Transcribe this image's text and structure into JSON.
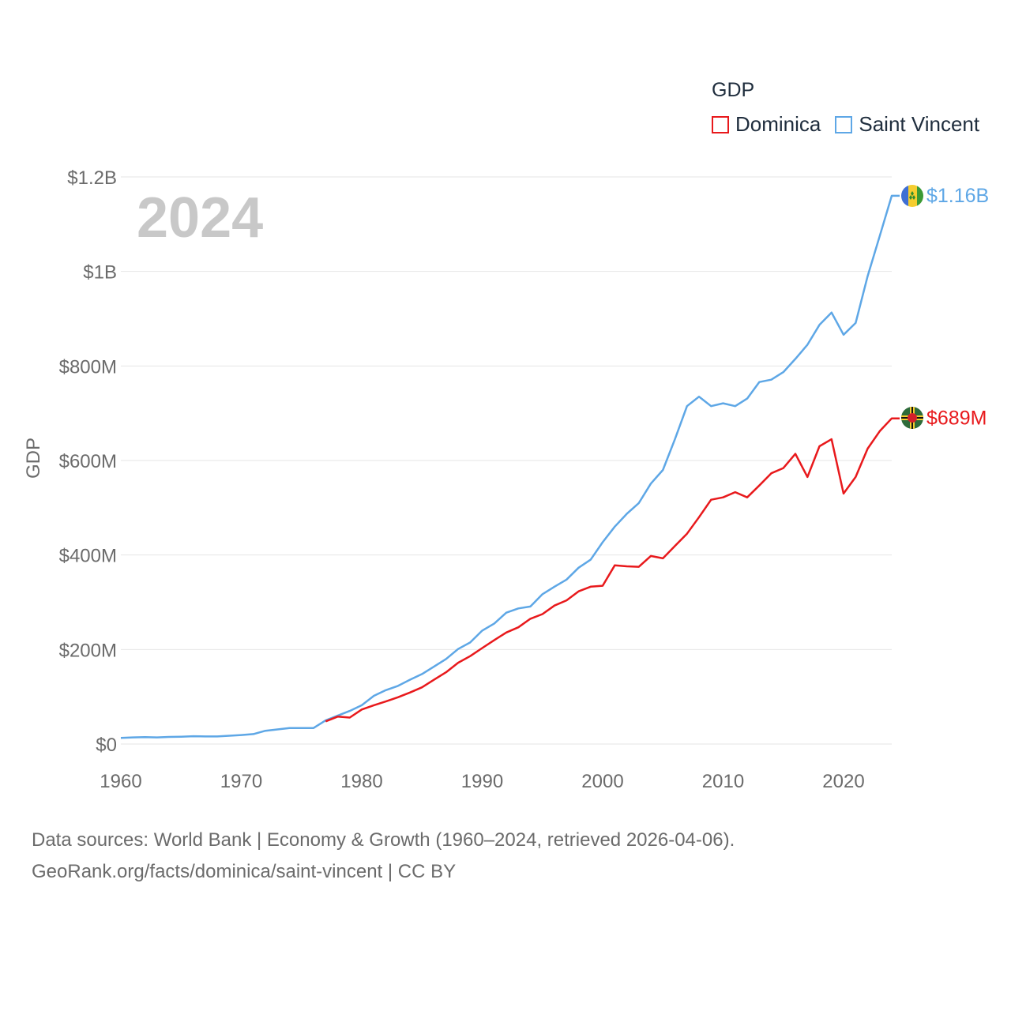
{
  "legend": {
    "title": "GDP",
    "items": [
      {
        "name": "Dominica",
        "color": "#e8191c"
      },
      {
        "name": "Saint Vincent",
        "color": "#5ea7e6"
      }
    ]
  },
  "chart_data": {
    "type": "line",
    "year_label": "2024",
    "ylabel": "GDP",
    "xlim": [
      1960,
      2024
    ],
    "ylim": [
      0,
      1200000000
    ],
    "x_ticks": [
      "1960",
      "1970",
      "1980",
      "1990",
      "2000",
      "2010",
      "2020"
    ],
    "y_ticks": [
      {
        "value": 0,
        "label": "$0"
      },
      {
        "value": 200000000,
        "label": "$200M"
      },
      {
        "value": 400000000,
        "label": "$400M"
      },
      {
        "value": 600000000,
        "label": "$600M"
      },
      {
        "value": 800000000,
        "label": "$800M"
      },
      {
        "value": 1000000000,
        "label": "$1B"
      },
      {
        "value": 1200000000,
        "label": "$1.2B"
      }
    ],
    "series": [
      {
        "name": "Saint Vincent",
        "color": "#5ea7e6",
        "end_label": "$1.16B",
        "flag": "saint-vincent-flag-icon",
        "x": [
          1960,
          1961,
          1962,
          1963,
          1964,
          1965,
          1966,
          1967,
          1968,
          1969,
          1970,
          1971,
          1972,
          1973,
          1974,
          1975,
          1976,
          1977,
          1978,
          1979,
          1980,
          1981,
          1982,
          1983,
          1984,
          1985,
          1986,
          1987,
          1988,
          1989,
          1990,
          1991,
          1992,
          1993,
          1994,
          1995,
          1996,
          1997,
          1998,
          1999,
          2000,
          2001,
          2002,
          2003,
          2004,
          2005,
          2006,
          2007,
          2008,
          2009,
          2010,
          2011,
          2012,
          2013,
          2014,
          2015,
          2016,
          2017,
          2018,
          2019,
          2020,
          2021,
          2022,
          2023,
          2024
        ],
        "values": [
          13000000,
          14000000,
          14500000,
          14000000,
          15000000,
          15500000,
          16500000,
          16000000,
          16000000,
          17500000,
          19000000,
          21000000,
          28000000,
          31000000,
          34000000,
          34000000,
          34000000,
          50000000,
          60000000,
          70000000,
          82000000,
          102000000,
          114000000,
          123000000,
          136000000,
          148000000,
          164000000,
          180000000,
          201000000,
          215000000,
          240000000,
          255000000,
          278000000,
          287000000,
          291000000,
          317000000,
          333000000,
          348000000,
          373000000,
          390000000,
          427000000,
          460000000,
          487000000,
          510000000,
          551000000,
          580000000,
          645000000,
          715000000,
          735000000,
          715000000,
          721000000,
          715000000,
          731000000,
          766000000,
          771000000,
          787000000,
          815000000,
          845000000,
          887000000,
          913000000,
          866000000,
          891000000,
          990000000,
          1075000000,
          1160000000
        ]
      },
      {
        "name": "Dominica",
        "color": "#e8191c",
        "end_label": "$689M",
        "flag": "dominica-flag-icon",
        "x": [
          1977,
          1978,
          1979,
          1980,
          1981,
          1982,
          1983,
          1984,
          1985,
          1986,
          1987,
          1988,
          1989,
          1990,
          1991,
          1992,
          1993,
          1994,
          1995,
          1996,
          1997,
          1998,
          1999,
          2000,
          2001,
          2002,
          2003,
          2004,
          2005,
          2006,
          2007,
          2008,
          2009,
          2010,
          2011,
          2012,
          2013,
          2014,
          2015,
          2016,
          2017,
          2018,
          2019,
          2020,
          2021,
          2022,
          2023,
          2024
        ],
        "values": [
          48000000,
          58000000,
          56000000,
          73000000,
          82000000,
          90000000,
          99000000,
          109000000,
          120000000,
          136000000,
          152000000,
          172000000,
          186000000,
          203000000,
          220000000,
          236000000,
          247000000,
          265000000,
          275000000,
          293000000,
          304000000,
          323000000,
          333000000,
          335000000,
          378000000,
          376000000,
          375000000,
          398000000,
          393000000,
          419000000,
          445000000,
          480000000,
          517000000,
          522000000,
          533000000,
          522000000,
          547000000,
          573000000,
          584000000,
          614000000,
          565000000,
          630000000,
          645000000,
          530000000,
          565000000,
          625000000,
          662000000,
          689000000
        ]
      }
    ]
  },
  "footer": {
    "line1": "Data sources: World Bank | Economy & Growth (1960–2024, retrieved 2026-04-06).",
    "line2": "GeoRank.org/facts/dominica/saint-vincent | CC BY"
  }
}
